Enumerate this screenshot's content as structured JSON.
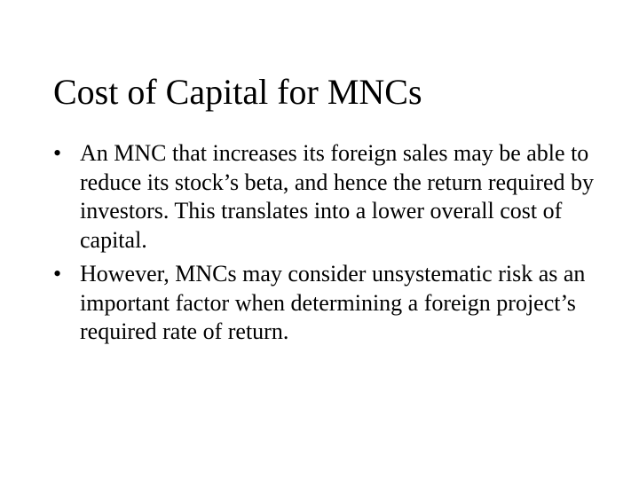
{
  "slide": {
    "title": "Cost of Capital for MNCs",
    "title_fontsize": 40,
    "body_fontsize": 26,
    "background_color": "#ffffff",
    "text_color": "#000000",
    "font_family": "Times New Roman",
    "bullets": [
      "An MNC that increases its foreign sales may be able to reduce its stock’s beta, and hence the return required by investors. This translates into a lower overall cost of capital.",
      "However, MNCs may consider unsystematic risk as an important factor when determining a foreign project’s required rate of return."
    ]
  }
}
